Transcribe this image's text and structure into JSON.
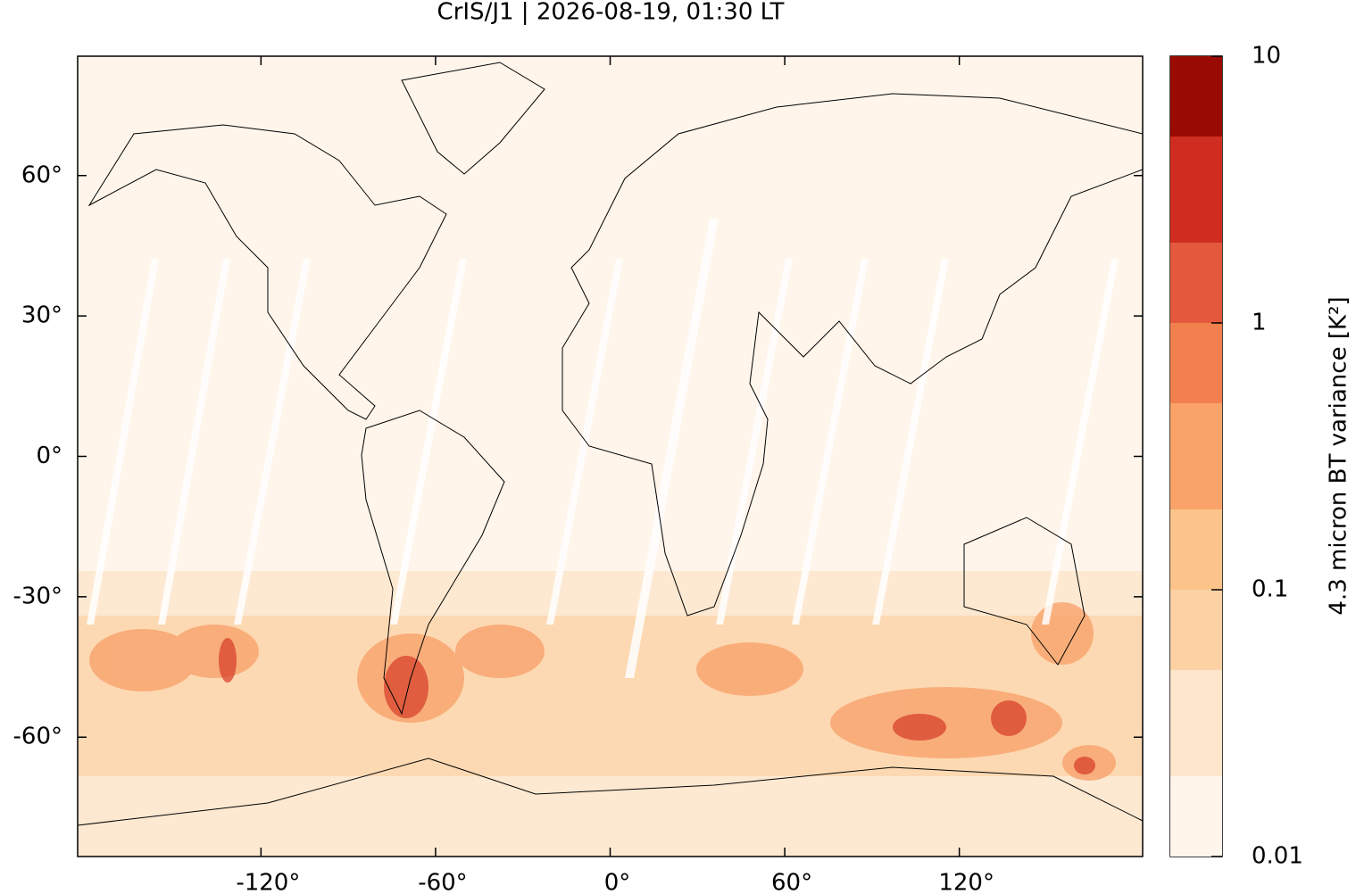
{
  "chart_data": {
    "type": "map",
    "title": "CrIS/J1 | 2026-08-19, 01:30 LT",
    "xlim": [
      -183,
      183
    ],
    "ylim": [
      -85.5,
      85.5
    ],
    "xticks": [
      {
        "value": -120,
        "label": "-120°"
      },
      {
        "value": -60,
        "label": "-60°"
      },
      {
        "value": 0,
        "label": "0°"
      },
      {
        "value": 60,
        "label": "60°"
      },
      {
        "value": 120,
        "label": "120°"
      }
    ],
    "yticks": [
      {
        "value": 60,
        "label": "60°"
      },
      {
        "value": 30,
        "label": "30°"
      },
      {
        "value": 0,
        "label": "0°"
      },
      {
        "value": -30,
        "label": "-30°"
      },
      {
        "value": -60,
        "label": "-60°"
      }
    ],
    "colorbar": {
      "label": "4.3 micron BT variance [K²]",
      "log": true,
      "lim": [
        0.01,
        10
      ],
      "ticks": [
        0.01,
        0.1,
        1,
        10
      ],
      "levels": [
        0.01,
        0.02,
        0.05,
        0.1,
        0.2,
        0.5,
        1,
        2,
        5,
        10
      ],
      "colors": [
        "#fff5eb",
        "#fde6cc",
        "#fcd2a5",
        "#fcc48a",
        "#faa369",
        "#f2804e",
        "#e4593d",
        "#cf2d1f",
        "#9b0b05"
      ]
    }
  }
}
